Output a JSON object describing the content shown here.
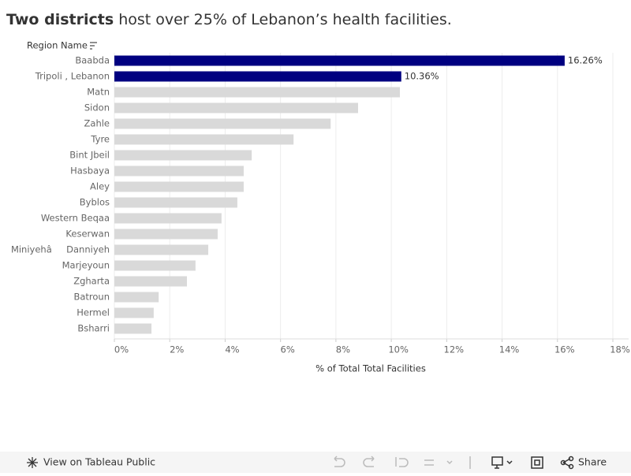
{
  "chart_data": {
    "type": "bar",
    "title_parts": [
      "Two districts",
      "host over 25% of Lebanon’s health facilities."
    ],
    "category_header": "Region Name",
    "x_label": "% of Total Total Facilities",
    "categories": [
      "Baabda",
      "Tripoli , Lebanon",
      "Matn",
      "Sidon",
      "Zahle",
      "Tyre",
      "Bint Jbeil",
      "Hasbaya",
      "Aley",
      "Byblos",
      "Western Beqaa",
      "Keserwan",
      "MiniyehâDanniyeh",
      "Marjeyoun",
      "Zgharta",
      "Batroun",
      "Hermel",
      "Bsharri"
    ],
    "values": [
      16.26,
      10.36,
      10.31,
      8.8,
      7.81,
      6.47,
      4.96,
      4.67,
      4.67,
      4.44,
      3.87,
      3.73,
      3.39,
      2.93,
      2.62,
      1.6,
      1.42,
      1.34
    ],
    "value_labels": [
      "16.26%",
      "10.36%",
      null,
      null,
      null,
      null,
      null,
      null,
      null,
      null,
      null,
      null,
      null,
      null,
      null,
      null,
      null,
      null
    ],
    "colors": [
      "#000080",
      "#000080",
      "#d9d9d9",
      "#d9d9d9",
      "#d9d9d9",
      "#d9d9d9",
      "#d9d9d9",
      "#d9d9d9",
      "#d9d9d9",
      "#d9d9d9",
      "#d9d9d9",
      "#d9d9d9",
      "#d9d9d9",
      "#d9d9d9",
      "#d9d9d9",
      "#d9d9d9",
      "#d9d9d9",
      "#d9d9d9"
    ],
    "xlim": [
      0,
      18
    ],
    "xticks": [
      {
        "value": 0,
        "label": "0%"
      },
      {
        "value": 2,
        "label": "2%"
      },
      {
        "value": 4,
        "label": "4%"
      },
      {
        "value": 6,
        "label": "6%"
      },
      {
        "value": 8,
        "label": "8%"
      },
      {
        "value": 10,
        "label": "10%"
      },
      {
        "value": 12,
        "label": "12%"
      },
      {
        "value": 14,
        "label": "14%"
      },
      {
        "value": 16,
        "label": "16%"
      },
      {
        "value": 18,
        "label": "18%"
      }
    ],
    "grid": true
  },
  "toolbar": {
    "view_link": "View on Tableau Public",
    "share": "Share"
  }
}
